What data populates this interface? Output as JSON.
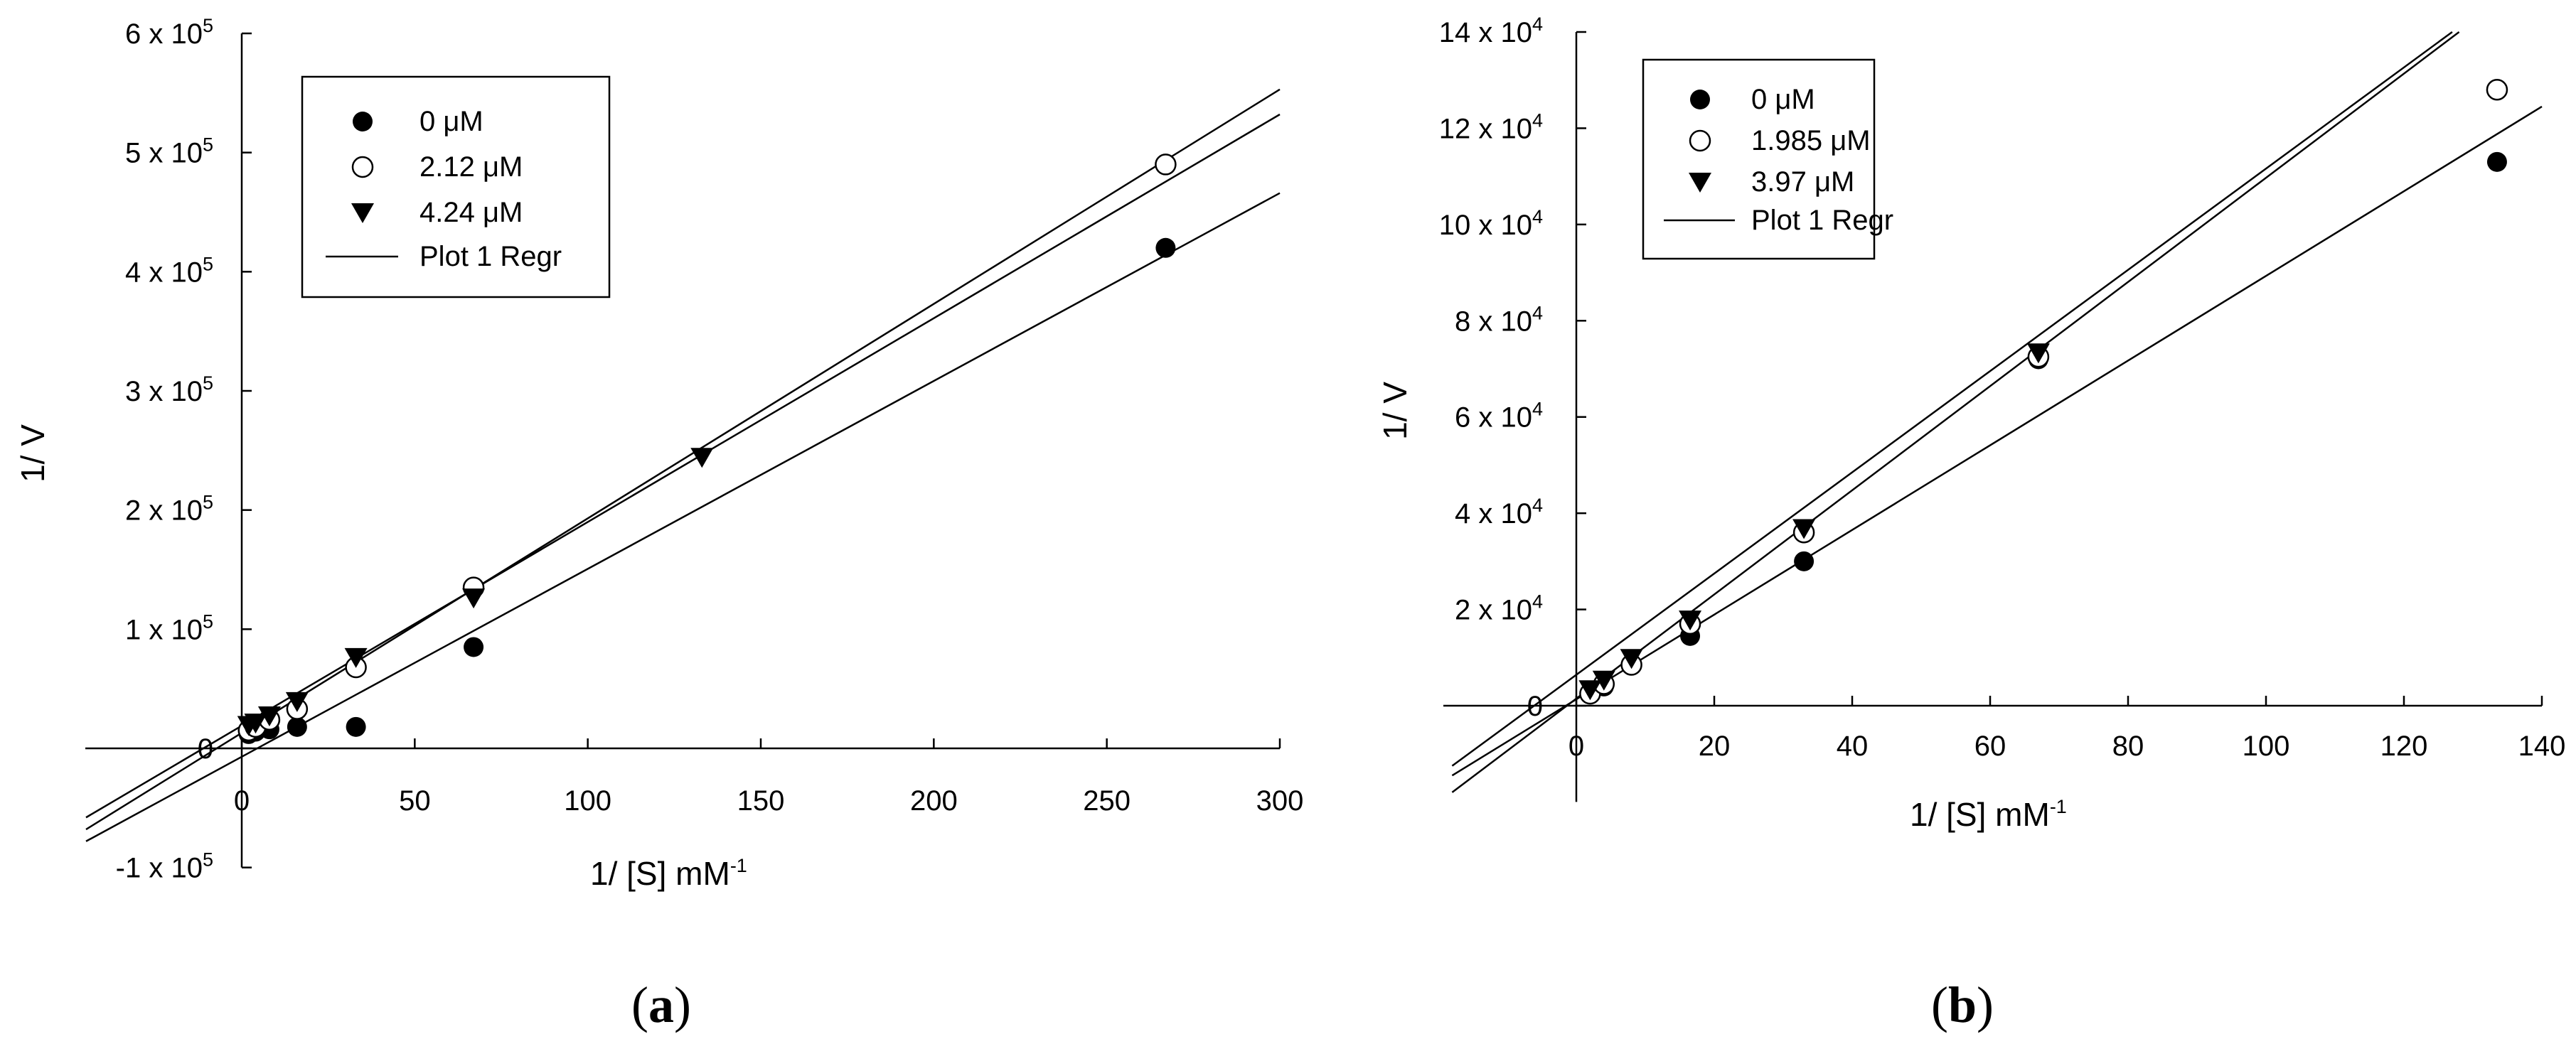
{
  "chart_data": [
    {
      "type": "scatter",
      "panel_label": "a",
      "xlabel": "1/ [S] mM",
      "xlabel_sup": "-1",
      "ylabel": "1/ V",
      "xlim": [
        -45,
        300
      ],
      "ylim": [
        -100000,
        600000
      ],
      "x_ticks": [
        {
          "value": 0,
          "label": "0"
        },
        {
          "value": 50,
          "label": "50"
        },
        {
          "value": 100,
          "label": "100"
        },
        {
          "value": 150,
          "label": "150"
        },
        {
          "value": 200,
          "label": "200"
        },
        {
          "value": 250,
          "label": "250"
        },
        {
          "value": 300,
          "label": "300"
        }
      ],
      "y_ticks": [
        {
          "value": -100000,
          "label": "-1 x 10",
          "exp": "5"
        },
        {
          "value": 0,
          "label": "0",
          "exp": ""
        },
        {
          "value": 100000,
          "label": "1 x 10",
          "exp": "5"
        },
        {
          "value": 200000,
          "label": "2 x 10",
          "exp": "5"
        },
        {
          "value": 300000,
          "label": "3 x 10",
          "exp": "5"
        },
        {
          "value": 400000,
          "label": "4 x 10",
          "exp": "5"
        },
        {
          "value": 500000,
          "label": "5 x 10",
          "exp": "5"
        },
        {
          "value": 600000,
          "label": "6 x 10",
          "exp": "5"
        }
      ],
      "legend_position": "top-left",
      "legend_line_label": "Plot 1 Regr",
      "series": [
        {
          "name": "0 μM",
          "marker": "filled-circle",
          "points": [
            [
              2,
              12000
            ],
            [
              4,
              14000
            ],
            [
              8,
              16000
            ],
            [
              16,
              18000
            ],
            [
              33,
              18000
            ],
            [
              67,
              85000
            ],
            [
              267,
              420000
            ]
          ],
          "regression": {
            "x": [
              -45,
              300
            ],
            "y": [
              -78000,
              466000
            ]
          }
        },
        {
          "name": "2.12 μM",
          "marker": "open-circle",
          "points": [
            [
              2,
              15000
            ],
            [
              4,
              18000
            ],
            [
              8,
              24000
            ],
            [
              16,
              33000
            ],
            [
              33,
              68000
            ],
            [
              67,
              135000
            ],
            [
              267,
              490000
            ]
          ],
          "regression": {
            "x": [
              -45,
              300
            ],
            "y": [
              -68000,
              553000
            ]
          }
        },
        {
          "name": "4.24 μM",
          "marker": "filled-triangle-down",
          "points": [
            [
              2,
              20000
            ],
            [
              4,
              22000
            ],
            [
              8,
              28000
            ],
            [
              16,
              40000
            ],
            [
              33,
              77000
            ],
            [
              67,
              127000
            ],
            [
              133,
              245000
            ]
          ],
          "regression": {
            "x": [
              -45,
              300
            ],
            "y": [
              -58000,
              532000
            ]
          }
        }
      ]
    },
    {
      "type": "scatter",
      "panel_label": "b",
      "xlabel": "1/ [S] mM",
      "xlabel_sup": "-1",
      "ylabel": "1/ V",
      "xlim": [
        -18,
        140
      ],
      "ylim": [
        -20000,
        140000
      ],
      "x_ticks": [
        {
          "value": 0,
          "label": "0"
        },
        {
          "value": 20,
          "label": "20"
        },
        {
          "value": 40,
          "label": "40"
        },
        {
          "value": 60,
          "label": "60"
        },
        {
          "value": 80,
          "label": "80"
        },
        {
          "value": 100,
          "label": "100"
        },
        {
          "value": 120,
          "label": "120"
        },
        {
          "value": 140,
          "label": "140"
        }
      ],
      "y_ticks": [
        {
          "value": 0,
          "label": "0",
          "exp": ""
        },
        {
          "value": 20000,
          "label": "2 x 10",
          "exp": "4"
        },
        {
          "value": 40000,
          "label": "4 x 10",
          "exp": "4"
        },
        {
          "value": 60000,
          "label": "6 x 10",
          "exp": "4"
        },
        {
          "value": 80000,
          "label": "8 x 10",
          "exp": "4"
        },
        {
          "value": 100000,
          "label": "10 x 10",
          "exp": "4"
        },
        {
          "value": 120000,
          "label": "12 x 10",
          "exp": "4"
        },
        {
          "value": 140000,
          "label": "14 x 10",
          "exp": "4"
        }
      ],
      "legend_position": "top-left",
      "legend_line_label": "Plot 1 Regr",
      "series": [
        {
          "name": "0 μM",
          "marker": "filled-circle",
          "points": [
            [
              2,
              2500
            ],
            [
              4,
              4000
            ],
            [
              8,
              8500
            ],
            [
              16.5,
              14500
            ],
            [
              33,
              30000
            ],
            [
              67,
              72000
            ],
            [
              133.5,
              113000
            ]
          ],
          "regression": {
            "x": [
              -18,
              140
            ],
            "y": [
              -14500,
              124500
            ]
          }
        },
        {
          "name": "1.985 μM",
          "marker": "open-circle",
          "points": [
            [
              2,
              2500
            ],
            [
              4,
              4500
            ],
            [
              8,
              8500
            ],
            [
              16.5,
              17000
            ],
            [
              33,
              36000
            ],
            [
              67,
              72500
            ],
            [
              133.5,
              128000
            ]
          ],
          "regression": {
            "x": [
              -18,
              127
            ],
            "y": [
              -12500,
              140000
            ]
          }
        },
        {
          "name": "3.97 μM",
          "marker": "filled-triangle-down",
          "points": [
            [
              2,
              3500
            ],
            [
              4,
              5500
            ],
            [
              8,
              10000
            ],
            [
              16.5,
              18000
            ],
            [
              33,
              37000
            ],
            [
              67,
              73500
            ]
          ],
          "regression": {
            "x": [
              -18,
              128
            ],
            "y": [
              -18000,
              140000
            ]
          }
        }
      ]
    }
  ]
}
